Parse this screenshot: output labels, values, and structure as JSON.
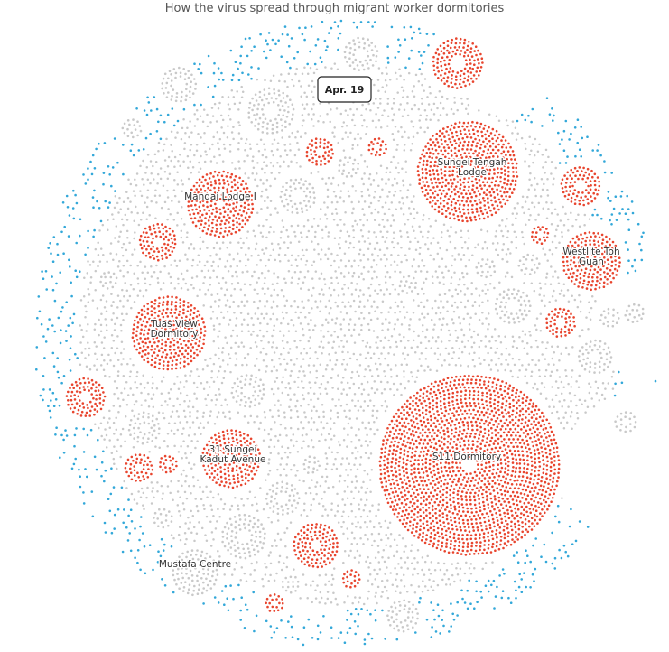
{
  "chart_data": {
    "type": "scatter",
    "title": "How the virus spread through migrant worker dormitories",
    "date": "Apr. 19",
    "colors": {
      "infected": "#e8452e",
      "gray": "#c9c9c9",
      "community": "#33a8d9"
    },
    "clusters": [
      {
        "label": "Sungei Tengah Lodge",
        "lines": [
          "Sungei Tengah",
          "Lodge"
        ],
        "status": "infected"
      },
      {
        "label": "Mandai Lodge I",
        "lines": [
          "Mandai Lodge I"
        ],
        "status": "infected"
      },
      {
        "label": "Westlite Toh Guan",
        "lines": [
          "Westlite Toh",
          "Guan"
        ],
        "status": "infected"
      },
      {
        "label": "Tuas View Dormitory",
        "lines": [
          "Tuas View",
          "Dormitory"
        ],
        "status": "infected"
      },
      {
        "label": "31 Sungei Kadut Avenue",
        "lines": [
          "31 Sungei",
          "Kadut Avenue"
        ],
        "status": "infected"
      },
      {
        "label": "S11 Dormitory",
        "lines": [
          "S11 Dormitory"
        ],
        "status": "infected"
      },
      {
        "label": "Mustafa Centre",
        "lines": [
          "Mustafa Centre"
        ],
        "status": "gray"
      }
    ]
  }
}
